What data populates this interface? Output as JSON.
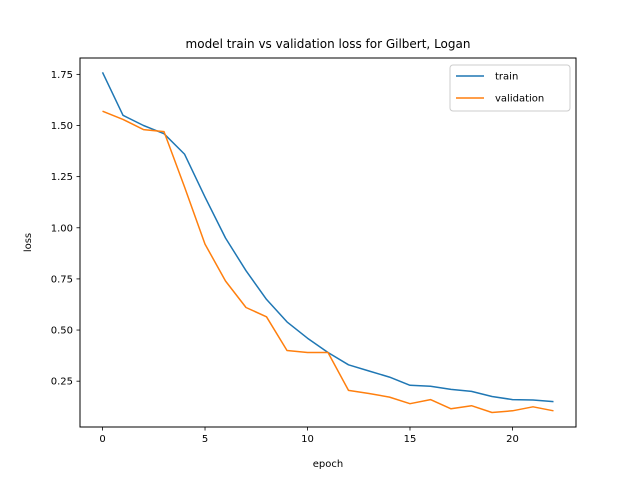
{
  "chart_data": {
    "type": "line",
    "title": "model train vs validation loss for Gilbert, Logan",
    "xlabel": "epoch",
    "ylabel": "loss",
    "xlim": [
      -1.1,
      23.1
    ],
    "ylim": [
      0.026,
      1.83
    ],
    "x_ticks": [
      0,
      5,
      10,
      15,
      20
    ],
    "y_ticks": [
      0.25,
      0.5,
      0.75,
      1.0,
      1.25,
      1.5,
      1.75
    ],
    "y_tick_labels": [
      "0.25",
      "0.50",
      "0.75",
      "1.00",
      "1.25",
      "1.50",
      "1.75"
    ],
    "legend_position": "top-right",
    "grid": false,
    "x": [
      0,
      1,
      2,
      3,
      4,
      5,
      6,
      7,
      8,
      9,
      10,
      11,
      12,
      13,
      14,
      15,
      16,
      17,
      18,
      19,
      20,
      21,
      22
    ],
    "series": [
      {
        "name": "train",
        "color": "#1f77b4",
        "values": [
          1.76,
          1.55,
          1.5,
          1.46,
          1.36,
          1.15,
          0.95,
          0.79,
          0.65,
          0.54,
          0.46,
          0.39,
          0.33,
          0.3,
          0.27,
          0.23,
          0.225,
          0.21,
          0.2,
          0.175,
          0.16,
          0.158,
          0.15
        ]
      },
      {
        "name": "validation",
        "color": "#ff7f0e",
        "values": [
          1.57,
          1.53,
          1.48,
          1.47,
          1.2,
          0.92,
          0.74,
          0.61,
          0.565,
          0.4,
          0.39,
          0.39,
          0.205,
          0.19,
          0.172,
          0.14,
          0.16,
          0.115,
          0.13,
          0.097,
          0.105,
          0.125,
          0.105
        ]
      }
    ]
  }
}
